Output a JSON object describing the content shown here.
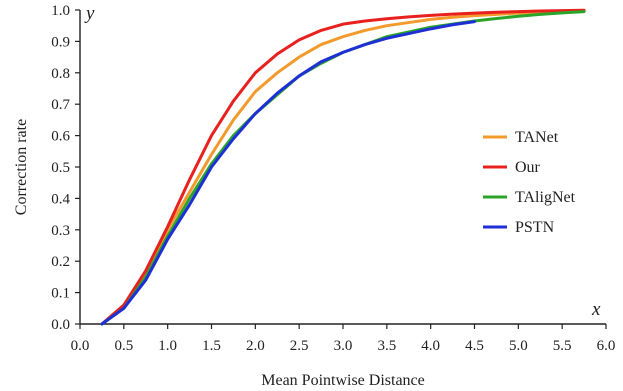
{
  "chart_data": {
    "type": "line",
    "title": "",
    "xlabel": "Mean Pointwise Distance",
    "ylabel": "Correction rate",
    "x_axis_var": "x",
    "y_axis_var": "y",
    "xlim": [
      0.0,
      6.0
    ],
    "ylim": [
      0.0,
      1.0
    ],
    "x_ticks": [
      "0.0",
      "0.5",
      "1.0",
      "1.5",
      "2.0",
      "2.5",
      "3.0",
      "3.5",
      "4.0",
      "4.5",
      "5.0",
      "5.5",
      "6.0"
    ],
    "y_ticks": [
      "0.0",
      "0.1",
      "0.2",
      "0.3",
      "0.4",
      "0.5",
      "0.6",
      "0.7",
      "0.8",
      "0.9",
      "1.0"
    ],
    "grid": false,
    "legend_position": "right",
    "series": [
      {
        "name": "TANet",
        "color": "#f39a2d",
        "x": [
          0.25,
          0.5,
          0.75,
          1.0,
          1.25,
          1.5,
          1.75,
          2.0,
          2.25,
          2.5,
          2.75,
          3.0,
          3.25,
          3.5,
          3.75,
          4.0,
          4.25,
          4.5,
          4.75,
          5.0,
          5.25,
          5.5,
          5.75
        ],
        "y": [
          0.0,
          0.06,
          0.16,
          0.3,
          0.42,
          0.54,
          0.65,
          0.74,
          0.8,
          0.85,
          0.89,
          0.915,
          0.935,
          0.95,
          0.96,
          0.97,
          0.977,
          0.982,
          0.986,
          0.99,
          0.993,
          0.995,
          0.997
        ]
      },
      {
        "name": "Our",
        "color": "#e8201e",
        "x": [
          0.25,
          0.5,
          0.75,
          1.0,
          1.25,
          1.5,
          1.75,
          2.0,
          2.25,
          2.5,
          2.75,
          3.0,
          3.25,
          3.5,
          3.75,
          4.0,
          4.25,
          4.5,
          4.75,
          5.0,
          5.25,
          5.5,
          5.75
        ],
        "y": [
          0.0,
          0.06,
          0.17,
          0.31,
          0.46,
          0.6,
          0.71,
          0.8,
          0.86,
          0.905,
          0.935,
          0.955,
          0.965,
          0.972,
          0.978,
          0.983,
          0.987,
          0.99,
          0.993,
          0.995,
          0.997,
          0.998,
          0.999
        ]
      },
      {
        "name": "TAligNet",
        "color": "#2aa52a",
        "x": [
          0.25,
          0.5,
          0.75,
          1.0,
          1.25,
          1.5,
          1.75,
          2.0,
          2.25,
          2.5,
          2.75,
          3.0,
          3.25,
          3.5,
          3.75,
          4.0,
          4.25,
          4.5,
          4.75,
          5.0,
          5.25,
          5.5,
          5.75
        ],
        "y": [
          0.0,
          0.05,
          0.15,
          0.28,
          0.4,
          0.51,
          0.6,
          0.67,
          0.73,
          0.79,
          0.83,
          0.865,
          0.89,
          0.915,
          0.93,
          0.945,
          0.955,
          0.965,
          0.973,
          0.98,
          0.986,
          0.991,
          0.995
        ]
      },
      {
        "name": "PSTN",
        "color": "#1f2fd6",
        "x": [
          0.25,
          0.5,
          0.75,
          1.0,
          1.25,
          1.5,
          1.75,
          2.0,
          2.25,
          2.5,
          2.75,
          3.0,
          3.25,
          3.5,
          3.75,
          4.0,
          4.25,
          4.5
        ],
        "y": [
          0.0,
          0.05,
          0.14,
          0.27,
          0.38,
          0.5,
          0.59,
          0.67,
          0.735,
          0.79,
          0.835,
          0.865,
          0.89,
          0.91,
          0.925,
          0.94,
          0.953,
          0.963
        ]
      }
    ]
  }
}
